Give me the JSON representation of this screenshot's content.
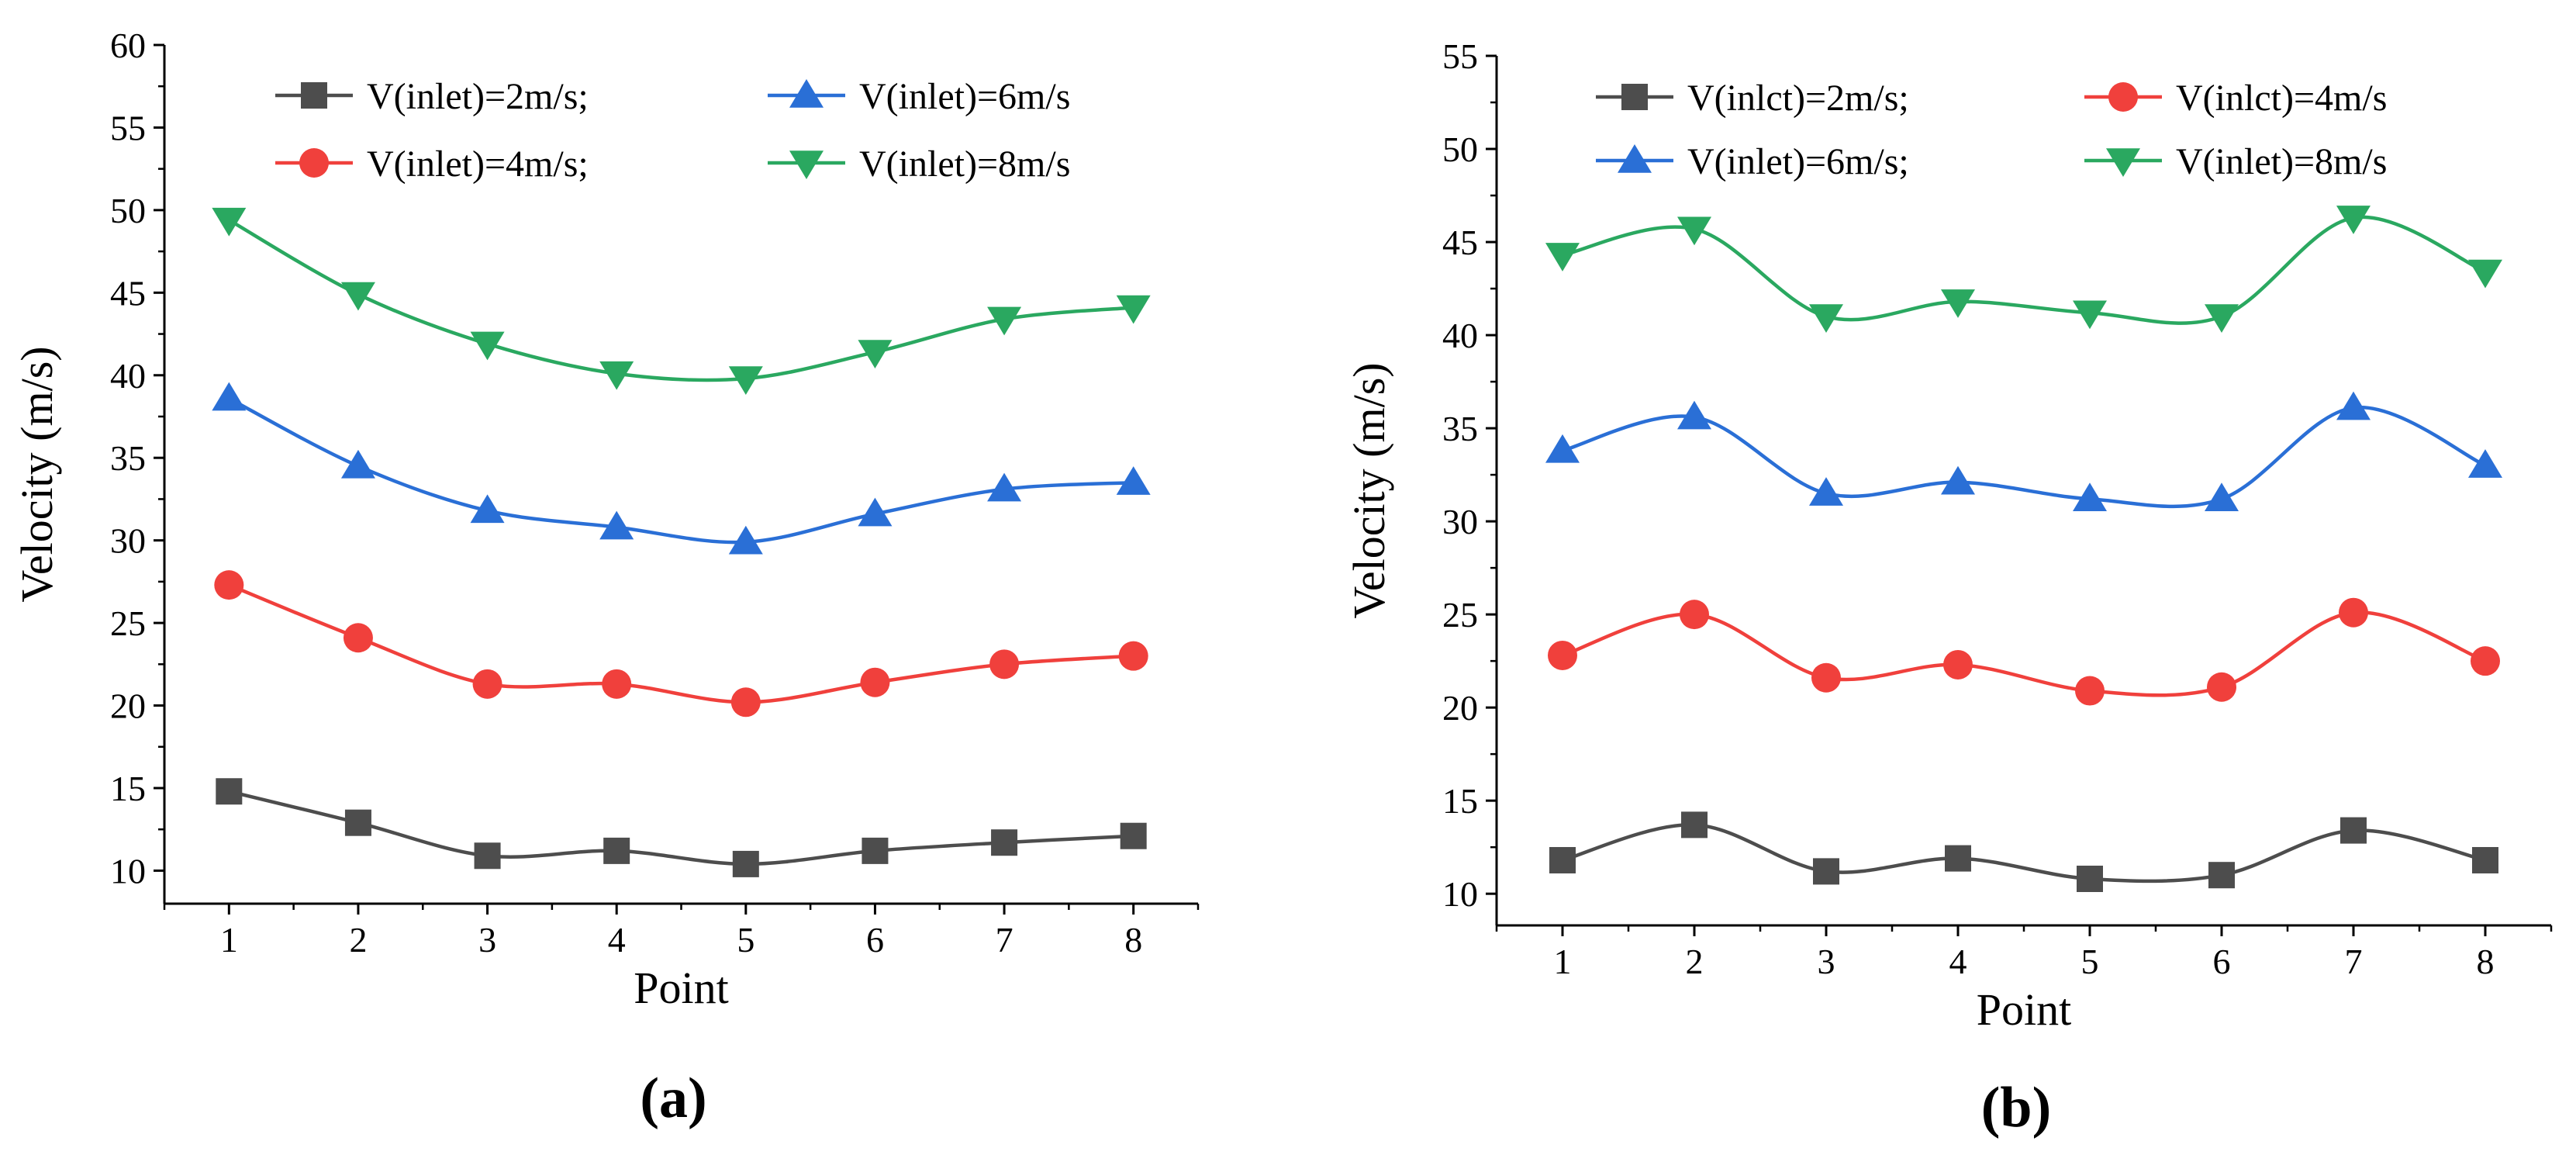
{
  "chart_data": [
    {
      "type": "line",
      "panel_label": "(a)",
      "xlabel": "Point",
      "ylabel": "Velocity (m/s)",
      "x": [
        1,
        2,
        3,
        4,
        5,
        6,
        7,
        8
      ],
      "xlim": [
        0.5,
        8.5
      ],
      "ylim": [
        8,
        60
      ],
      "yticks": [
        10,
        15,
        20,
        25,
        30,
        35,
        40,
        45,
        50,
        55,
        60
      ],
      "grid": false,
      "legend_position": "top",
      "series": [
        {
          "name": "V(inlet)=2m/s;",
          "color": "#4d4d4d",
          "marker": "square",
          "values": [
            14.8,
            12.9,
            10.9,
            11.2,
            10.4,
            11.2,
            11.7,
            12.1
          ]
        },
        {
          "name": "V(inlet)=6m/s",
          "color": "#2a6fd6",
          "marker": "triangle-up",
          "values": [
            38.6,
            34.5,
            31.8,
            30.8,
            29.9,
            31.6,
            33.1,
            33.5
          ]
        },
        {
          "name": "V(inlet)=4m/s;",
          "color": "#f0403c",
          "marker": "circle",
          "values": [
            27.3,
            24.1,
            21.3,
            21.3,
            20.2,
            21.4,
            22.5,
            23.0
          ]
        },
        {
          "name": "V(inlet)=8m/s",
          "color": "#2aa860",
          "marker": "triangle-down",
          "values": [
            49.4,
            44.9,
            41.9,
            40.1,
            39.8,
            41.4,
            43.4,
            44.1
          ]
        }
      ]
    },
    {
      "type": "line",
      "panel_label": "(b)",
      "xlabel": "Point",
      "ylabel": "Velocity (m/s)",
      "x": [
        1,
        2,
        3,
        4,
        5,
        6,
        7,
        8
      ],
      "xlim": [
        0.5,
        8.5
      ],
      "ylim": [
        8.3,
        55
      ],
      "yticks": [
        10,
        15,
        20,
        25,
        30,
        35,
        40,
        45,
        50,
        55
      ],
      "grid": false,
      "legend_position": "top",
      "series": [
        {
          "name": "V(inlct)=2m/s;",
          "color": "#4d4d4d",
          "marker": "square",
          "values": [
            11.8,
            13.7,
            11.2,
            11.9,
            10.8,
            11.0,
            13.4,
            11.8
          ]
        },
        {
          "name": "V(inlct)=4m/s",
          "color": "#f0403c",
          "marker": "circle",
          "values": [
            22.8,
            25.0,
            21.6,
            22.3,
            20.9,
            21.1,
            25.1,
            22.5
          ]
        },
        {
          "name": "V(inlet)=6m/s;",
          "color": "#2a6fd6",
          "marker": "triangle-up",
          "values": [
            33.8,
            35.6,
            31.5,
            32.1,
            31.2,
            31.2,
            36.1,
            33.0
          ]
        },
        {
          "name": "V(inlet)=8m/s",
          "color": "#2aa860",
          "marker": "triangle-down",
          "values": [
            44.3,
            45.7,
            41.0,
            41.8,
            41.2,
            41.0,
            46.3,
            43.4
          ]
        }
      ]
    }
  ]
}
